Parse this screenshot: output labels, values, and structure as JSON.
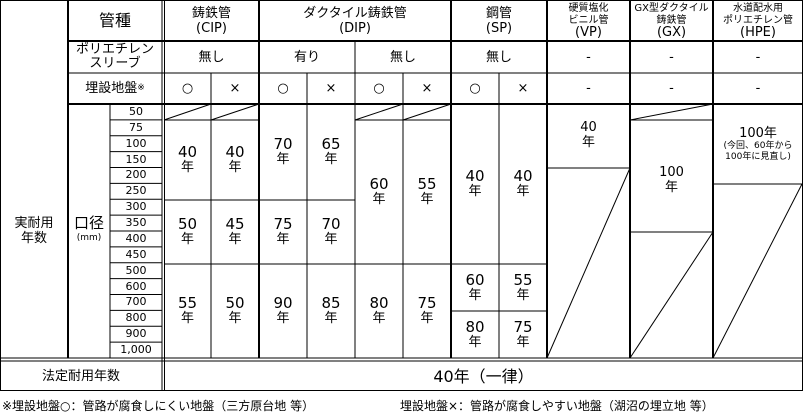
{
  "header": {
    "pipe_type_label": "管種",
    "sleeve_label": [
      "ポリエチレン",
      "スリーブ"
    ],
    "ground_label": "埋設地盤",
    "ground_mark": "※",
    "actual_life_label": [
      "実耐用",
      "年数"
    ],
    "diameter_label": "口径",
    "diameter_unit": "(mm)",
    "legal_life_label": "法定耐用年数"
  },
  "pipes": {
    "cip": {
      "name": "鋳鉄管",
      "code": "(CIP)",
      "sleeve": "無し",
      "good": "○",
      "bad": "×"
    },
    "dip": {
      "name": "ダクタイル鋳鉄管",
      "code": "(DIP)",
      "sleeve_with": "有り",
      "sleeve_without": "無し",
      "good": "○",
      "bad": "×"
    },
    "sp": {
      "name": "鋼管",
      "code": "(SP)",
      "sleeve": "無し",
      "good": "○",
      "bad": "×"
    },
    "vp": {
      "name": [
        "硬質塩化",
        "ビニル管"
      ],
      "code": "(VP)",
      "sleeve": "-",
      "ground": "-"
    },
    "gx": {
      "name": [
        "GX型ダクタイル",
        "鋳鉄管"
      ],
      "code": "(GX)",
      "sleeve": "-",
      "ground": "-"
    },
    "hpe": {
      "name": [
        "水道配水用",
        "ポリエチレン管"
      ],
      "code": "(HPE)",
      "sleeve": "-",
      "ground": "-"
    }
  },
  "diameters": [
    "50",
    "75",
    "100",
    "150",
    "200",
    "250",
    "300",
    "350",
    "400",
    "450",
    "500",
    "600",
    "700",
    "800",
    "900",
    "1,000"
  ],
  "unit_year": "年",
  "values": {
    "cip_good": [
      "40",
      "50",
      "55"
    ],
    "cip_bad": [
      "40",
      "45",
      "50"
    ],
    "dip_with_good": [
      "70",
      "75",
      "90"
    ],
    "dip_with_bad": [
      "65",
      "70",
      "85"
    ],
    "dip_without_good": [
      "60",
      "80"
    ],
    "dip_without_bad": [
      "55",
      "75"
    ],
    "sp_good": [
      "40",
      "60",
      "80"
    ],
    "sp_bad": [
      "40",
      "55",
      "75"
    ],
    "vp": "40",
    "gx": "100",
    "hpe": "100年",
    "hpe_note": [
      "(今回、60年から",
      "100年に見直し)"
    ]
  },
  "legal_life_value": "40年（一律）",
  "footnotes": [
    "※埋設地盤○：管路が腐食しにくい地盤（三方原台地 等）",
    "埋設地盤×：管路が腐食しやすい地盤（湖沼の埋立地 等）"
  ]
}
